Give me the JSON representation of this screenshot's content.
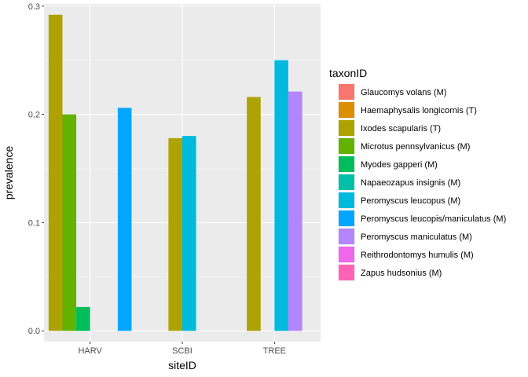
{
  "chart_data": {
    "type": "bar",
    "xlabel": "siteID",
    "ylabel": "prevalence",
    "ylim": [
      -0.01,
      0.302
    ],
    "yticks": [
      0.0,
      0.1,
      0.2,
      0.3
    ],
    "ytick_labels": [
      "0.0",
      "0.1",
      "0.2",
      "0.3"
    ],
    "categories": [
      "HARV",
      "SCBI",
      "TREE"
    ],
    "grid": true,
    "legend_placement": "right",
    "legend_title": "taxonID",
    "series": [
      {
        "name": "Glaucomys volans (M)",
        "color": "#F8766D",
        "values": [
          null,
          null,
          null
        ]
      },
      {
        "name": "Haemaphysalis longicornis (T)",
        "color": "#DB8E00",
        "values": [
          null,
          null,
          null
        ]
      },
      {
        "name": "Ixodes scapularis (T)",
        "color": "#AEA200",
        "values": [
          0.292,
          0.178,
          0.216
        ]
      },
      {
        "name": "Microtus pennsylvanicus (M)",
        "color": "#64B200",
        "values": [
          0.2,
          null,
          null
        ]
      },
      {
        "name": "Myodes gapperi (M)",
        "color": "#00BD5C",
        "values": [
          0.022,
          null,
          null
        ]
      },
      {
        "name": "Napaeozapus insignis (M)",
        "color": "#00C1A7",
        "values": [
          null,
          null,
          null
        ]
      },
      {
        "name": "Peromyscus leucopus (M)",
        "color": "#00BADE",
        "values": [
          null,
          0.18,
          0.25
        ]
      },
      {
        "name": "Peromyscus leucopis/maniculatus (M)",
        "color": "#00A6FF",
        "values": [
          0.206,
          null,
          null
        ]
      },
      {
        "name": "Peromyscus maniculatus (M)",
        "color": "#B385FF",
        "values": [
          null,
          null,
          0.221
        ]
      },
      {
        "name": "Reithrodontomys humulis (M)",
        "color": "#EF67EB",
        "values": [
          null,
          null,
          null
        ]
      },
      {
        "name": "Zapus hudsonius (M)",
        "color": "#FF63B6",
        "values": [
          null,
          null,
          null
        ]
      }
    ],
    "bars": [
      {
        "category": "HARV",
        "series": "Ixodes scapularis (T)",
        "value": 0.292,
        "slot": 0,
        "slots": 6
      },
      {
        "category": "HARV",
        "series": "Microtus pennsylvanicus (M)",
        "value": 0.2,
        "slot": 1,
        "slots": 6
      },
      {
        "category": "HARV",
        "series": "Myodes gapperi (M)",
        "value": 0.022,
        "slot": 2,
        "slots": 6
      },
      {
        "category": "HARV",
        "series": "Peromyscus leucopis/maniculatus (M)",
        "value": 0.206,
        "slot": 5,
        "slots": 6
      },
      {
        "category": "SCBI",
        "series": "Ixodes scapularis (T)",
        "value": 0.178,
        "slot": 2,
        "slots": 6
      },
      {
        "category": "SCBI",
        "series": "Peromyscus leucopus (M)",
        "value": 0.18,
        "slot": 3,
        "slots": 6
      },
      {
        "category": "TREE",
        "series": "Ixodes scapularis (T)",
        "value": 0.216,
        "slot": 1,
        "slots": 6
      },
      {
        "category": "TREE",
        "series": "Peromyscus leucopus (M)",
        "value": 0.25,
        "slot": 3,
        "slots": 6
      },
      {
        "category": "TREE",
        "series": "Peromyscus maniculatus (M)",
        "value": 0.221,
        "slot": 4,
        "slots": 6
      }
    ]
  }
}
